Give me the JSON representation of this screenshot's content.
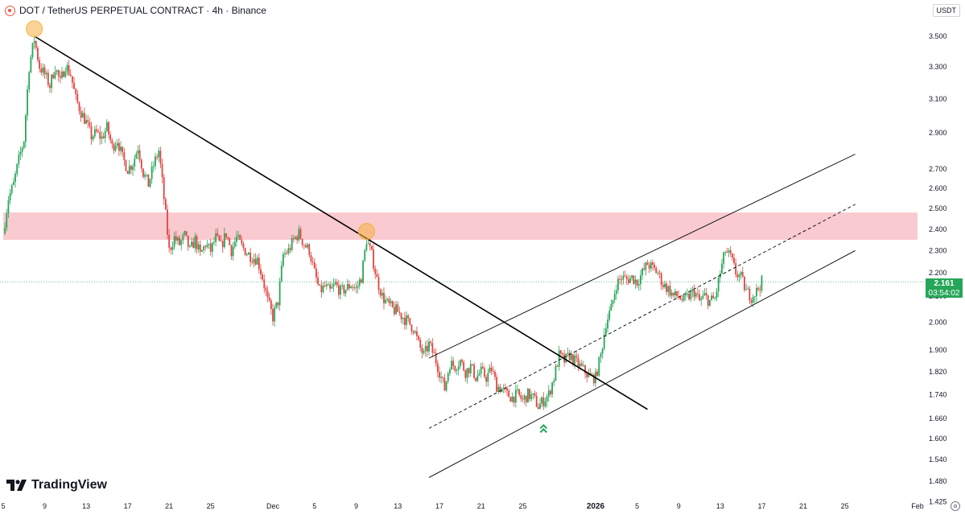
{
  "header": {
    "title": "DOT / TetherUS PERPETUAL CONTRACT · 4h · Binance",
    "unit_button": "USDT",
    "icon": "polkadot-symbol-icon"
  },
  "logo": {
    "text": "TradingView",
    "icon": "tradingview-logo-icon"
  },
  "price_label": {
    "price": "2.161",
    "countdown": "03:54:02",
    "color": "#26a658"
  },
  "colors": {
    "up": "#26a658",
    "down": "#e0443f",
    "zone": "#f9c4cc",
    "trendline": "#000000",
    "highlight": "#f5b041"
  },
  "chart_data": {
    "type": "candlestick",
    "title": "DOT / TetherUS PERPETUAL CONTRACT · 4h · Binance",
    "y_scale": "log",
    "y_range": [
      1.4,
      3.62
    ],
    "y_ticks": [
      3.5,
      3.3,
      3.1,
      2.9,
      2.7,
      2.6,
      2.5,
      2.4,
      2.3,
      2.2,
      2.1,
      2.0,
      1.9,
      1.82,
      1.74,
      1.66,
      1.6,
      1.54,
      1.48,
      1.425
    ],
    "y_tick_labels": [
      "3.500",
      "3.300",
      "3.100",
      "2.900",
      "2.700",
      "2.600",
      "2.500",
      "2.400",
      "2.300",
      "2.200",
      "2.100",
      "2.000",
      "1.900",
      "1.820",
      "1.740",
      "1.660",
      "1.600",
      "1.540",
      "1.480",
      "1.425"
    ],
    "x_range": [
      "2025-11-05",
      "2026-02-01"
    ],
    "x_ticks": [
      {
        "date": "2025-11-05",
        "label": "5"
      },
      {
        "date": "2025-11-09",
        "label": "9"
      },
      {
        "date": "2025-11-13",
        "label": "13"
      },
      {
        "date": "2025-11-17",
        "label": "17"
      },
      {
        "date": "2025-11-21",
        "label": "21"
      },
      {
        "date": "2025-11-25",
        "label": "25"
      },
      {
        "date": "2025-12-01",
        "label": "Dec"
      },
      {
        "date": "2025-12-05",
        "label": "5"
      },
      {
        "date": "2025-12-09",
        "label": "9"
      },
      {
        "date": "2025-12-13",
        "label": "13"
      },
      {
        "date": "2025-12-17",
        "label": "17"
      },
      {
        "date": "2025-12-21",
        "label": "21"
      },
      {
        "date": "2025-12-25",
        "label": "25"
      },
      {
        "date": "2026-01-01",
        "label": "2026"
      },
      {
        "date": "2026-01-05",
        "label": "5"
      },
      {
        "date": "2026-01-09",
        "label": "9"
      },
      {
        "date": "2026-01-13",
        "label": "13"
      },
      {
        "date": "2026-01-17",
        "label": "17"
      },
      {
        "date": "2026-01-21",
        "label": "21"
      },
      {
        "date": "2026-01-25",
        "label": "25"
      },
      {
        "date": "2026-02-01",
        "label": "Feb"
      }
    ],
    "price_path": [
      [
        "2025-11-05",
        2.38
      ],
      [
        "2025-11-05 12:00",
        2.55
      ],
      [
        "2025-11-06",
        2.62
      ],
      [
        "2025-11-06 12:00",
        2.75
      ],
      [
        "2025-11-07",
        2.86
      ],
      [
        "2025-11-07 12:00",
        3.3
      ],
      [
        "2025-11-08",
        3.48
      ],
      [
        "2025-11-08 12:00",
        3.3
      ],
      [
        "2025-11-09",
        3.25
      ],
      [
        "2025-11-09 12:00",
        3.18
      ],
      [
        "2025-11-10",
        3.3
      ],
      [
        "2025-11-10 12:00",
        3.2
      ],
      [
        "2025-11-11",
        3.31
      ],
      [
        "2025-11-11 12:00",
        3.25
      ],
      [
        "2025-11-12",
        3.1
      ],
      [
        "2025-11-12 12:00",
        3.02
      ],
      [
        "2025-11-13",
        2.96
      ],
      [
        "2025-11-13 12:00",
        2.88
      ],
      [
        "2025-11-14",
        2.9
      ],
      [
        "2025-11-14 12:00",
        2.87
      ],
      [
        "2025-11-15",
        2.93
      ],
      [
        "2025-11-15 12:00",
        2.82
      ],
      [
        "2025-11-16",
        2.86
      ],
      [
        "2025-11-16 12:00",
        2.76
      ],
      [
        "2025-11-17",
        2.7
      ],
      [
        "2025-11-17 12:00",
        2.73
      ],
      [
        "2025-11-18",
        2.82
      ],
      [
        "2025-11-18 12:00",
        2.68
      ],
      [
        "2025-11-19",
        2.62
      ],
      [
        "2025-11-19 12:00",
        2.72
      ],
      [
        "2025-11-20",
        2.8
      ],
      [
        "2025-11-20 12:00",
        2.55
      ],
      [
        "2025-11-21",
        2.3
      ],
      [
        "2025-11-21 12:00",
        2.36
      ],
      [
        "2025-11-22",
        2.33
      ],
      [
        "2025-11-22 12:00",
        2.37
      ],
      [
        "2025-11-23",
        2.3
      ],
      [
        "2025-11-23 12:00",
        2.35
      ],
      [
        "2025-11-24",
        2.28
      ],
      [
        "2025-11-24 12:00",
        2.33
      ],
      [
        "2025-11-25",
        2.3
      ],
      [
        "2025-11-25 12:00",
        2.36
      ],
      [
        "2025-11-26",
        2.32
      ],
      [
        "2025-11-26 12:00",
        2.38
      ],
      [
        "2025-11-27",
        2.3
      ],
      [
        "2025-11-27 12:00",
        2.36
      ],
      [
        "2025-11-28",
        2.32
      ],
      [
        "2025-11-28 12:00",
        2.29
      ],
      [
        "2025-11-29",
        2.27
      ],
      [
        "2025-11-29 12:00",
        2.26
      ],
      [
        "2025-11-30",
        2.18
      ],
      [
        "2025-11-30 12:00",
        2.08
      ],
      [
        "2025-12-01",
        2.02
      ],
      [
        "2025-12-01 12:00",
        2.08
      ],
      [
        "2025-12-02",
        2.28
      ],
      [
        "2025-12-02 12:00",
        2.3
      ],
      [
        "2025-12-03",
        2.35
      ],
      [
        "2025-12-03 12:00",
        2.38
      ],
      [
        "2025-12-04",
        2.33
      ],
      [
        "2025-12-04 12:00",
        2.3
      ],
      [
        "2025-12-05",
        2.2
      ],
      [
        "2025-12-05 12:00",
        2.12
      ],
      [
        "2025-12-06",
        2.14
      ],
      [
        "2025-12-06 12:00",
        2.12
      ],
      [
        "2025-12-07",
        2.15
      ],
      [
        "2025-12-07 12:00",
        2.12
      ],
      [
        "2025-12-08",
        2.13
      ],
      [
        "2025-12-08 12:00",
        2.15
      ],
      [
        "2025-12-09",
        2.13
      ],
      [
        "2025-12-09 12:00",
        2.18
      ],
      [
        "2025-12-10",
        2.35
      ],
      [
        "2025-12-10 12:00",
        2.28
      ],
      [
        "2025-12-11",
        2.17
      ],
      [
        "2025-12-11 12:00",
        2.1
      ],
      [
        "2025-12-12",
        2.07
      ],
      [
        "2025-12-12 12:00",
        2.05
      ],
      [
        "2025-12-13",
        2.04
      ],
      [
        "2025-12-13 12:00",
        2.02
      ],
      [
        "2025-12-14",
        2.0
      ],
      [
        "2025-12-14 12:00",
        1.98
      ],
      [
        "2025-12-15",
        1.92
      ],
      [
        "2025-12-15 12:00",
        1.88
      ],
      [
        "2025-12-16",
        1.92
      ],
      [
        "2025-12-16 12:00",
        1.88
      ],
      [
        "2025-12-17",
        1.82
      ],
      [
        "2025-12-17 12:00",
        1.76
      ],
      [
        "2025-12-18",
        1.85
      ],
      [
        "2025-12-18 12:00",
        1.84
      ],
      [
        "2025-12-19",
        1.86
      ],
      [
        "2025-12-19 12:00",
        1.82
      ],
      [
        "2025-12-20",
        1.84
      ],
      [
        "2025-12-20 12:00",
        1.8
      ],
      [
        "2025-12-21",
        1.82
      ],
      [
        "2025-12-21 12:00",
        1.8
      ],
      [
        "2025-12-22",
        1.83
      ],
      [
        "2025-12-22 12:00",
        1.77
      ],
      [
        "2025-12-23",
        1.76
      ],
      [
        "2025-12-23 12:00",
        1.74
      ],
      [
        "2025-12-24",
        1.73
      ],
      [
        "2025-12-24 12:00",
        1.74
      ],
      [
        "2025-12-25",
        1.72
      ],
      [
        "2025-12-25 12:00",
        1.74
      ],
      [
        "2025-12-26",
        1.73
      ],
      [
        "2025-12-26 12:00",
        1.7
      ],
      [
        "2025-12-27",
        1.72
      ],
      [
        "2025-12-27 12:00",
        1.74
      ],
      [
        "2025-12-28",
        1.8
      ],
      [
        "2025-12-28 12:00",
        1.88
      ],
      [
        "2025-12-29",
        1.86
      ],
      [
        "2025-12-29 12:00",
        1.88
      ],
      [
        "2025-12-30",
        1.86
      ],
      [
        "2025-12-30 12:00",
        1.84
      ],
      [
        "2025-12-31",
        1.82
      ],
      [
        "2025-12-31 12:00",
        1.8
      ],
      [
        "2026-01-01",
        1.8
      ],
      [
        "2026-01-01 12:00",
        1.88
      ],
      [
        "2026-01-02",
        2.0
      ],
      [
        "2026-01-02 12:00",
        2.05
      ],
      [
        "2026-01-03",
        2.15
      ],
      [
        "2026-01-03 12:00",
        2.18
      ],
      [
        "2026-01-04",
        2.17
      ],
      [
        "2026-01-04 12:00",
        2.18
      ],
      [
        "2026-01-05",
        2.16
      ],
      [
        "2026-01-05 12:00",
        2.2
      ],
      [
        "2026-01-06",
        2.24
      ],
      [
        "2026-01-06 12:00",
        2.22
      ],
      [
        "2026-01-07",
        2.2
      ],
      [
        "2026-01-07 12:00",
        2.15
      ],
      [
        "2026-01-08",
        2.13
      ],
      [
        "2026-01-08 12:00",
        2.1
      ],
      [
        "2026-01-09",
        2.1
      ],
      [
        "2026-01-09 12:00",
        2.08
      ],
      [
        "2026-01-10",
        2.1
      ],
      [
        "2026-01-10 12:00",
        2.12
      ],
      [
        "2026-01-11",
        2.08
      ],
      [
        "2026-01-11 12:00",
        2.1
      ],
      [
        "2026-01-12",
        2.08
      ],
      [
        "2026-01-12 12:00",
        2.09
      ],
      [
        "2026-01-13",
        2.2
      ],
      [
        "2026-01-13 12:00",
        2.3
      ],
      [
        "2026-01-14",
        2.27
      ],
      [
        "2026-01-14 12:00",
        2.2
      ],
      [
        "2026-01-15",
        2.18
      ],
      [
        "2026-01-15 12:00",
        2.12
      ],
      [
        "2026-01-16",
        2.1
      ],
      [
        "2026-01-16 12:00",
        2.12
      ],
      [
        "2026-01-17",
        2.161
      ]
    ],
    "annotations": [
      {
        "type": "zone",
        "y": [
          2.35,
          2.48
        ],
        "color": "#f9c4cc",
        "x": [
          "2025-11-05",
          "2026-02-01"
        ]
      },
      {
        "type": "trendline",
        "style": "solid",
        "points": [
          [
            "2025-11-08",
            3.5
          ],
          [
            "2026-01-06",
            1.69
          ]
        ]
      },
      {
        "type": "channel-upper",
        "style": "solid",
        "points": [
          [
            "2025-12-16",
            1.87
          ],
          [
            "2026-01-26",
            2.78
          ]
        ]
      },
      {
        "type": "channel-middle",
        "style": "dashed",
        "points": [
          [
            "2025-12-16",
            1.63
          ],
          [
            "2026-01-26",
            2.52
          ]
        ]
      },
      {
        "type": "channel-lower",
        "style": "solid",
        "points": [
          [
            "2025-12-16",
            1.49
          ],
          [
            "2026-01-26",
            2.3
          ]
        ]
      },
      {
        "type": "circle-marker",
        "at": [
          "2025-11-08",
          3.55
        ]
      },
      {
        "type": "circle-marker",
        "at": [
          "2025-12-10",
          2.39
        ]
      },
      {
        "type": "double-up-arrow",
        "at": [
          "2025-12-27",
          1.63
        ]
      }
    ],
    "last_price": 2.161
  }
}
